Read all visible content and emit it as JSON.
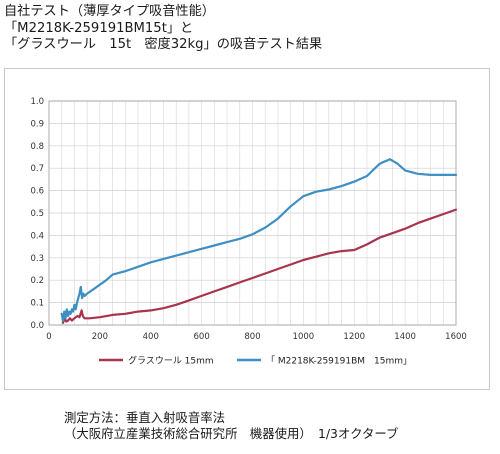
{
  "title": {
    "line1": "自社テスト（薄厚タイプ吸音性能）",
    "line2": "「M2218K-259191BM15t」と",
    "line3": "「グラスウール　15t　密度32kg」の吸音テスト結果"
  },
  "chart_data": {
    "type": "line",
    "xlim": [
      0,
      1600
    ],
    "ylim": [
      0,
      1.0
    ],
    "x_ticks": [
      0,
      200,
      400,
      600,
      800,
      1000,
      1200,
      1400,
      1600
    ],
    "x_tick_labels": [
      "0",
      "200",
      "400",
      "600",
      "800",
      "1000",
      "1200",
      "1400",
      "1600"
    ],
    "y_ticks": [
      0,
      0.1,
      0.2,
      0.3,
      0.4,
      0.5,
      0.6,
      0.7,
      0.8,
      0.9,
      1.0
    ],
    "y_tick_labels": [
      "0.0",
      "0.1",
      "0.2",
      "0.3",
      "0.4",
      "0.5",
      "0.6",
      "0.7",
      "0.8",
      "0.9",
      "1.0"
    ],
    "grid": true,
    "legend_position": "bottom",
    "series": [
      {
        "name": "グラスウール 15mm",
        "color": "#a8354d",
        "points": [
          [
            55,
            0.01
          ],
          [
            62,
            0.03
          ],
          [
            68,
            0.015
          ],
          [
            75,
            0.02
          ],
          [
            82,
            0.03
          ],
          [
            90,
            0.02
          ],
          [
            100,
            0.03
          ],
          [
            112,
            0.04
          ],
          [
            120,
            0.035
          ],
          [
            128,
            0.065
          ],
          [
            133,
            0.04
          ],
          [
            140,
            0.03
          ],
          [
            160,
            0.03
          ],
          [
            200,
            0.035
          ],
          [
            250,
            0.045
          ],
          [
            300,
            0.05
          ],
          [
            350,
            0.06
          ],
          [
            400,
            0.065
          ],
          [
            450,
            0.075
          ],
          [
            500,
            0.09
          ],
          [
            550,
            0.11
          ],
          [
            600,
            0.13
          ],
          [
            650,
            0.15
          ],
          [
            700,
            0.17
          ],
          [
            750,
            0.19
          ],
          [
            800,
            0.21
          ],
          [
            850,
            0.23
          ],
          [
            900,
            0.25
          ],
          [
            950,
            0.27
          ],
          [
            1000,
            0.29
          ],
          [
            1050,
            0.305
          ],
          [
            1100,
            0.32
          ],
          [
            1150,
            0.33
          ],
          [
            1200,
            0.335
          ],
          [
            1250,
            0.36
          ],
          [
            1300,
            0.39
          ],
          [
            1350,
            0.41
          ],
          [
            1400,
            0.43
          ],
          [
            1450,
            0.455
          ],
          [
            1500,
            0.475
          ],
          [
            1550,
            0.495
          ],
          [
            1600,
            0.515
          ]
        ]
      },
      {
        "name": "「 M2218K-259191BM　15mm」",
        "color": "#3f8fc3",
        "points": [
          [
            50,
            0.05
          ],
          [
            55,
            0.02
          ],
          [
            60,
            0.06
          ],
          [
            65,
            0.03
          ],
          [
            70,
            0.07
          ],
          [
            75,
            0.04
          ],
          [
            80,
            0.06
          ],
          [
            85,
            0.05
          ],
          [
            90,
            0.07
          ],
          [
            95,
            0.06
          ],
          [
            100,
            0.09
          ],
          [
            105,
            0.07
          ],
          [
            110,
            0.1
          ],
          [
            115,
            0.12
          ],
          [
            120,
            0.14
          ],
          [
            125,
            0.17
          ],
          [
            130,
            0.12
          ],
          [
            135,
            0.14
          ],
          [
            140,
            0.13
          ],
          [
            150,
            0.14
          ],
          [
            175,
            0.16
          ],
          [
            200,
            0.18
          ],
          [
            225,
            0.2
          ],
          [
            250,
            0.225
          ],
          [
            300,
            0.24
          ],
          [
            350,
            0.26
          ],
          [
            400,
            0.28
          ],
          [
            450,
            0.295
          ],
          [
            500,
            0.31
          ],
          [
            550,
            0.325
          ],
          [
            600,
            0.34
          ],
          [
            650,
            0.355
          ],
          [
            700,
            0.37
          ],
          [
            750,
            0.385
          ],
          [
            800,
            0.405
          ],
          [
            850,
            0.435
          ],
          [
            900,
            0.475
          ],
          [
            950,
            0.53
          ],
          [
            1000,
            0.575
          ],
          [
            1050,
            0.595
          ],
          [
            1100,
            0.605
          ],
          [
            1150,
            0.62
          ],
          [
            1200,
            0.64
          ],
          [
            1250,
            0.665
          ],
          [
            1300,
            0.72
          ],
          [
            1340,
            0.74
          ],
          [
            1370,
            0.72
          ],
          [
            1400,
            0.69
          ],
          [
            1450,
            0.675
          ],
          [
            1500,
            0.67
          ],
          [
            1550,
            0.67
          ],
          [
            1600,
            0.67
          ]
        ]
      }
    ]
  },
  "footer": {
    "line1": "測定方法：垂直入射吸音率法",
    "line2": "（大阪府立産業技術総合研究所　機器使用）　1/3オクターブ"
  }
}
